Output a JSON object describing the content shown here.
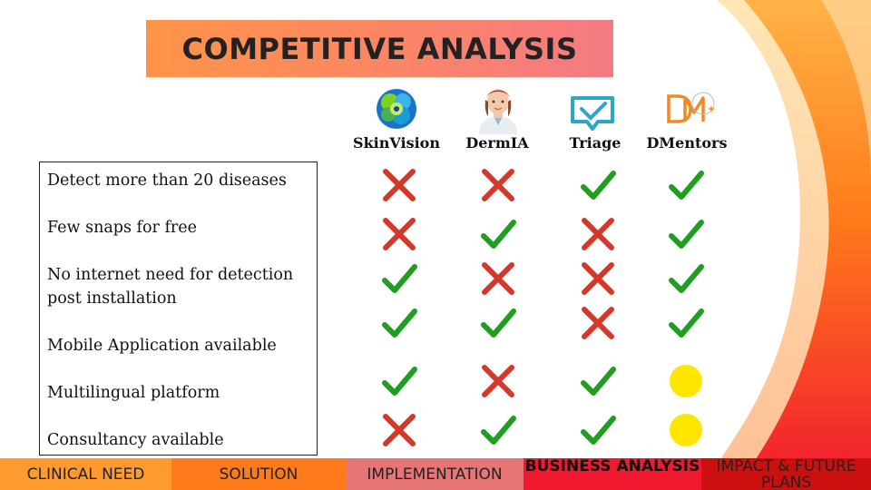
{
  "title": "COMPETITIVE ANALYSIS",
  "competitors": [
    {
      "name": "SkinVision",
      "logo": "skinvision-logo"
    },
    {
      "name": "DermIA",
      "logo": "doctor-avatar-logo"
    },
    {
      "name": "Triage",
      "logo": "triage-logo"
    },
    {
      "name": "DMentors",
      "logo": "dmentors-logo"
    }
  ],
  "features": [
    {
      "line1": "Detect more than 20 diseases",
      "line2": ""
    },
    {
      "line1": "Few snaps for free",
      "line2": ""
    },
    {
      "line1": "No internet need for detection",
      "line2": "post installation"
    },
    {
      "line1": "Mobile Application available",
      "line2": ""
    },
    {
      "line1": "Multilingual platform",
      "line2": ""
    },
    {
      "line1": "Consultancy available",
      "line2": ""
    }
  ],
  "matrix": [
    [
      "cross",
      "cross",
      "check",
      "check"
    ],
    [
      "cross",
      "check",
      "cross",
      "check"
    ],
    [
      "check",
      "cross",
      "cross",
      "check"
    ],
    [
      "check",
      "check",
      "cross",
      "check"
    ],
    [
      "check",
      "cross",
      "check",
      "partial"
    ],
    [
      "cross",
      "check",
      "check",
      "partial"
    ]
  ],
  "colors": {
    "check": "#1f9e1f",
    "cross": "#d3392b",
    "partial": "#ffe500"
  },
  "nav": [
    {
      "label": "CLINICAL NEED",
      "color": "#ff9a2e",
      "active": false
    },
    {
      "label": "SOLUTION",
      "color": "#ff7a1a",
      "active": false
    },
    {
      "label": "IMPLEMENTATION",
      "color": "#e87575",
      "active": false
    },
    {
      "label": "BUSINESS ANALYSIS",
      "color": "#f0192f",
      "active": true
    },
    {
      "label": "IMPACT & FUTURE PLANS",
      "color": "#cc1010",
      "active": false
    }
  ]
}
